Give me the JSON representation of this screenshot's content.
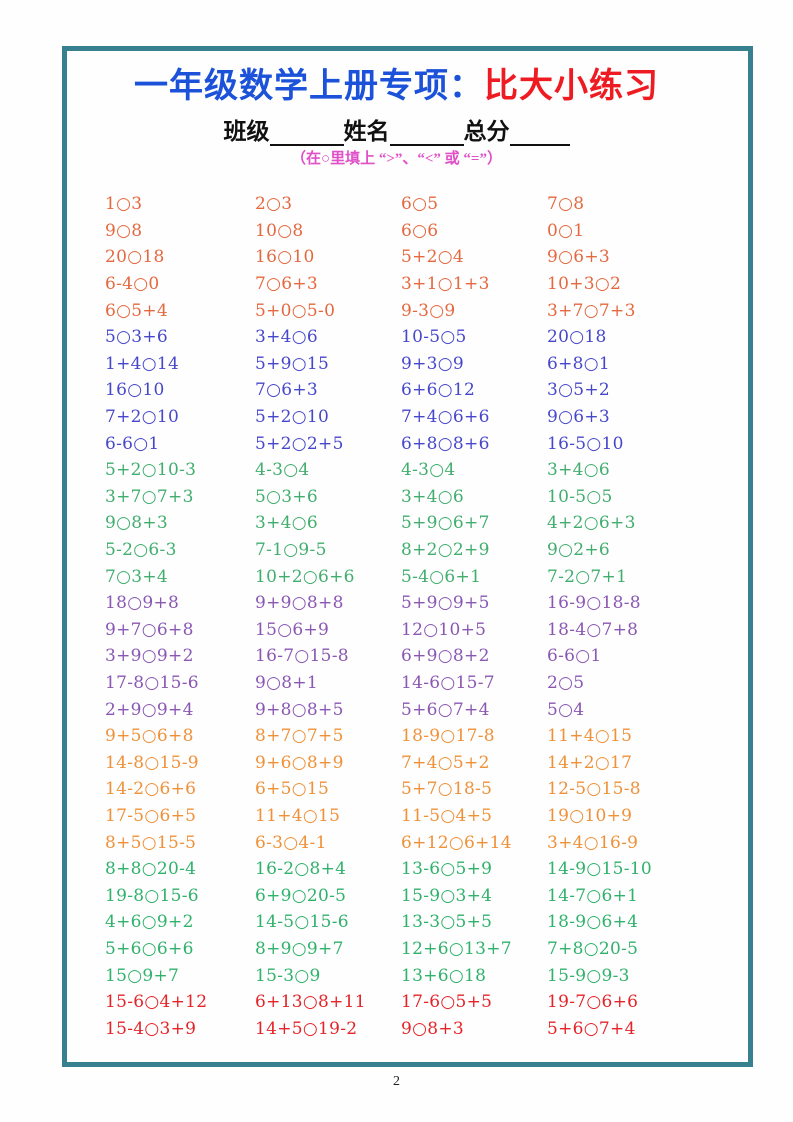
{
  "title": {
    "prefix": "一年级数学上册专项：",
    "highlight": "比大小练习"
  },
  "fields": {
    "class_label": "班级",
    "name_label": "姓名",
    "score_label": "总分"
  },
  "instruction": "（在○里填上 “>”、“<” 或 “=”）",
  "page_number": "2",
  "colors": {
    "border": "#37808f",
    "title_prefix": "#1b52d9",
    "title_highlight": "#ee1c22",
    "instruction": "#e050c8",
    "group_colors": [
      "#e5683f",
      "#4747cb",
      "#41ad6e",
      "#8a57b3",
      "#ef9139",
      "#30b16c",
      "#e52329"
    ]
  },
  "problems": {
    "rows": [
      {
        "g": 0,
        "cells": [
          "1○3",
          "2○3",
          "6○5",
          "7○8"
        ]
      },
      {
        "g": 0,
        "cells": [
          "9○8",
          "10○8",
          "6○6",
          "0○1"
        ]
      },
      {
        "g": 0,
        "cells": [
          "20○18",
          "16○10",
          "5+2○4",
          "9○6+3"
        ]
      },
      {
        "g": 0,
        "cells": [
          "6-4○0",
          "7○6+3",
          "3+1○1+3",
          "10+3○2"
        ]
      },
      {
        "g": 0,
        "cells": [
          "6○5+4",
          "5+0○5-0",
          "9-3○9",
          "3+7○7+3"
        ]
      },
      {
        "g": 1,
        "cells": [
          "5○3+6",
          "3+4○6",
          "10-5○5",
          "20○18"
        ]
      },
      {
        "g": 1,
        "cells": [
          "1+4○14",
          "5+9○15",
          "9+3○9",
          "6+8○1"
        ]
      },
      {
        "g": 1,
        "cells": [
          "16○10",
          "7○6+3",
          "6+6○12",
          "3○5+2"
        ]
      },
      {
        "g": 1,
        "cells": [
          "7+2○10",
          "5+2○10",
          "7+4○6+6",
          "9○6+3"
        ]
      },
      {
        "g": 1,
        "cells": [
          "6-6○1",
          "5+2○2+5",
          "6+8○8+6",
          "16-5○10"
        ]
      },
      {
        "g": 2,
        "cells": [
          "5+2○10-3",
          "4-3○4",
          "4-3○4",
          "3+4○6"
        ]
      },
      {
        "g": 2,
        "cells": [
          "3+7○7+3",
          "5○3+6",
          "3+4○6",
          "10-5○5"
        ]
      },
      {
        "g": 2,
        "cells": [
          "9○8+3",
          "3+4○6",
          "5+9○6+7",
          "4+2○6+3"
        ]
      },
      {
        "g": 2,
        "cells": [
          "5-2○6-3",
          "7-1○9-5",
          "8+2○2+9",
          "9○2+6"
        ]
      },
      {
        "g": 2,
        "cells": [
          "7○3+4",
          "10+2○6+6",
          "5-4○6+1",
          "7-2○7+1"
        ]
      },
      {
        "g": 3,
        "cells": [
          "18○9+8",
          "9+9○8+8",
          "5+9○9+5",
          "16-9○18-8"
        ]
      },
      {
        "g": 3,
        "cells": [
          "9+7○6+8",
          "15○6+9",
          "12○10+5",
          "18-4○7+8"
        ]
      },
      {
        "g": 3,
        "cells": [
          "3+9○9+2",
          "16-7○15-8",
          "6+9○8+2",
          "6-6○1"
        ]
      },
      {
        "g": 3,
        "cells": [
          "17-8○15-6",
          "9○8+1",
          "14-6○15-7",
          "2○5"
        ]
      },
      {
        "g": 3,
        "cells": [
          "2+9○9+4",
          "9+8○8+5",
          "5+6○7+4",
          "5○4"
        ]
      },
      {
        "g": 4,
        "cells": [
          "9+5○6+8",
          "8+7○7+5",
          "18-9○17-8",
          "11+4○15"
        ]
      },
      {
        "g": 4,
        "cells": [
          "14-8○15-9",
          "9+6○8+9",
          "7+4○5+2",
          "14+2○17"
        ]
      },
      {
        "g": 4,
        "cells": [
          "14-2○6+6",
          "6+5○15",
          "5+7○18-5",
          "12-5○15-8"
        ]
      },
      {
        "g": 4,
        "cells": [
          "17-5○6+5",
          "11+4○15",
          "11-5○4+5",
          "19○10+9"
        ]
      },
      {
        "g": 4,
        "cells": [
          "8+5○15-5",
          "6-3○4-1",
          "6+12○6+14",
          "3+4○16-9"
        ]
      },
      {
        "g": 5,
        "cells": [
          "8+8○20-4",
          "16-2○8+4",
          "13-6○5+9",
          "14-9○15-10"
        ]
      },
      {
        "g": 5,
        "cells": [
          "19-8○15-6",
          "6+9○20-5",
          "15-9○3+4",
          "14-7○6+1"
        ]
      },
      {
        "g": 5,
        "cells": [
          "4+6○9+2",
          "14-5○15-6",
          "13-3○5+5",
          "18-9○6+4"
        ]
      },
      {
        "g": 5,
        "cells": [
          "5+6○6+6",
          "8+9○9+7",
          "12+6○13+7",
          "7+8○20-5"
        ]
      },
      {
        "g": 5,
        "cells": [
          "15○9+7",
          "15-3○9",
          "13+6○18",
          "15-9○9-3"
        ]
      },
      {
        "g": 6,
        "cells": [
          "15-6○4+12",
          "6+13○8+11",
          "17-6○5+5",
          "19-7○6+6"
        ]
      },
      {
        "g": 6,
        "cells": [
          "15-4○3+9",
          "14+5○19-2",
          "9○8+3",
          "5+6○7+4"
        ]
      }
    ]
  }
}
